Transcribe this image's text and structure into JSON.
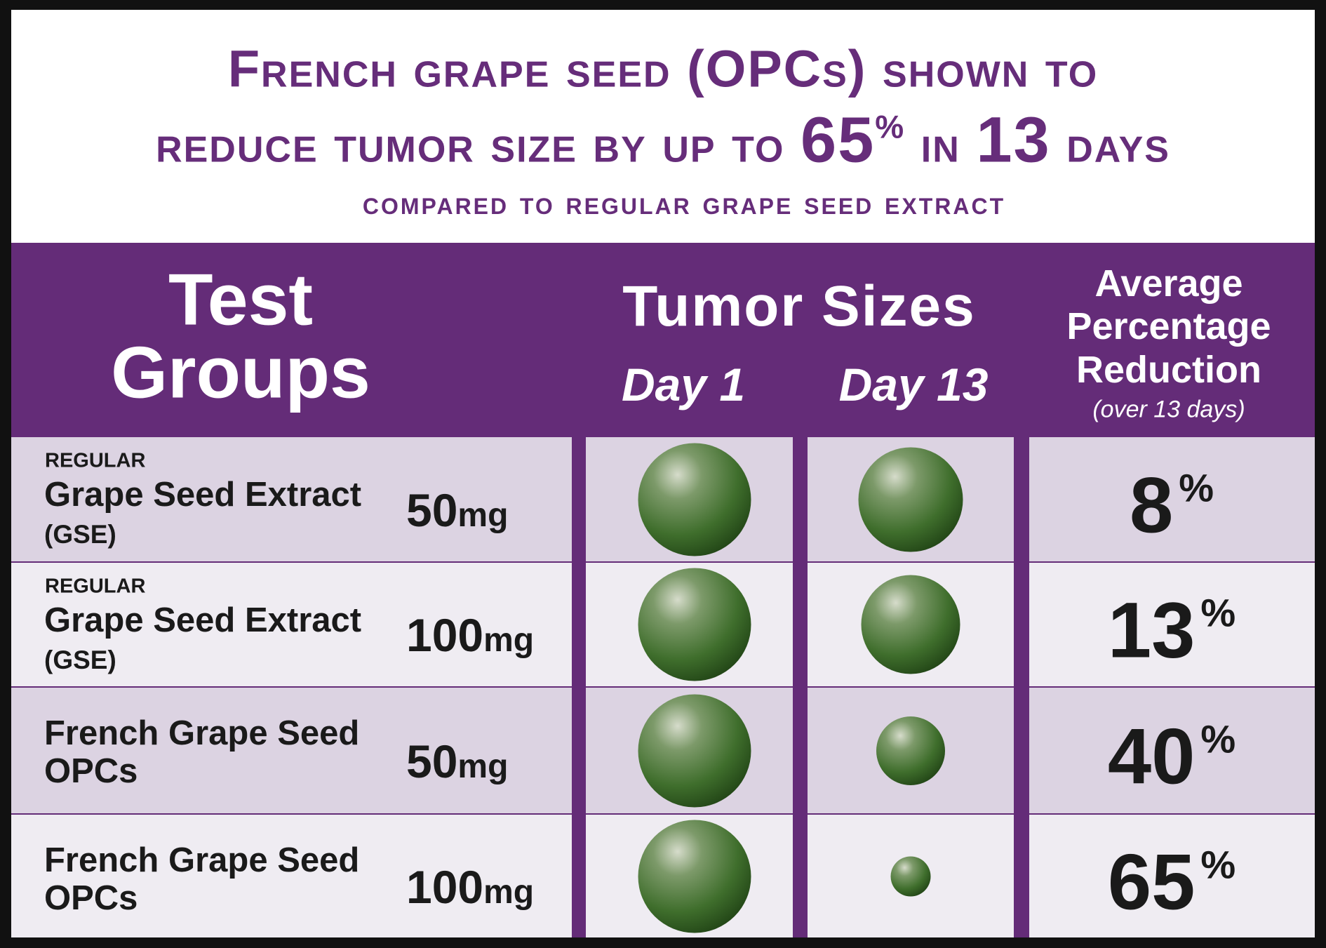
{
  "header": {
    "title_line1": "French grape seed (OPCs) shown to",
    "title_line2": [
      "reduce tumor size by up to ",
      "65",
      "%",
      " in ",
      "13",
      " days"
    ],
    "subtitle": "compared to regular grape seed extract"
  },
  "table": {
    "headers": {
      "groups": [
        "Test",
        "Groups"
      ],
      "tumor_sizes": "Tumor Sizes",
      "day1": "Day 1",
      "day13": "Day 13",
      "reduction": [
        "Average",
        "Percentage",
        "Reduction"
      ],
      "reduction_note": "(over 13 days)"
    },
    "rows": [
      {
        "qualifier": "REGULAR",
        "name": [
          "Grape Seed Extract",
          "(GSE)"
        ],
        "dose": {
          "amount": "50",
          "unit": "mg"
        },
        "reduction": {
          "amount": "8",
          "unit": "%"
        }
      },
      {
        "qualifier": "REGULAR",
        "name": [
          "Grape Seed Extract",
          "(GSE)"
        ],
        "dose": {
          "amount": "100",
          "unit": "mg"
        },
        "reduction": {
          "amount": "13",
          "unit": "%"
        }
      },
      {
        "name": [
          "French Grape Seed",
          "OPCs"
        ],
        "dose": {
          "amount": "50",
          "unit": "mg"
        },
        "reduction": {
          "amount": "40",
          "unit": "%"
        }
      },
      {
        "name": [
          "French Grape Seed",
          "OPCs"
        ],
        "dose": {
          "amount": "100",
          "unit": "mg"
        },
        "reduction": {
          "amount": "65",
          "unit": "%"
        }
      }
    ]
  }
}
